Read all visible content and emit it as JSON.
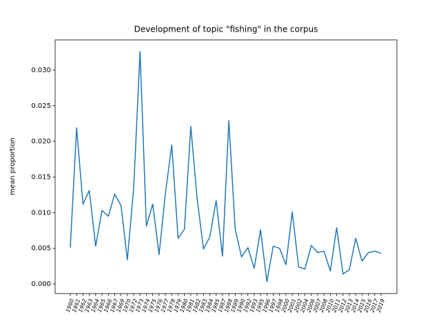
{
  "chart_data": {
    "type": "line",
    "title": "Development of topic \"fishing\" in the corpus",
    "y_label": "mean proportion",
    "categories": [
      "1960",
      "1961",
      "1962",
      "1963",
      "1964",
      "1965",
      "1966",
      "1967",
      "1969",
      "1970",
      "1972",
      "1973",
      "1974",
      "1975",
      "1976",
      "1977",
      "1978",
      "1979",
      "1980",
      "1981",
      "1982",
      "1983",
      "1984",
      "1985",
      "1987",
      "1988",
      "1989",
      "1990",
      "1992",
      "1993",
      "1995",
      "1996",
      "1997",
      "1998",
      "2000",
      "2001",
      "2002",
      "2004",
      "2006",
      "2007",
      "2008",
      "2010",
      "2011",
      "2012",
      "2013",
      "2014",
      "2015",
      "2016",
      "2017",
      "2019"
    ],
    "series": [
      {
        "name": "fishing",
        "color": "#1f77b4",
        "values": [
          0.0051,
          0.0219,
          0.0112,
          0.0131,
          0.0053,
          0.0103,
          0.0095,
          0.0126,
          0.011,
          0.0034,
          0.0135,
          0.0326,
          0.0081,
          0.0112,
          0.0041,
          0.0127,
          0.0195,
          0.0064,
          0.0077,
          0.0221,
          0.012,
          0.0049,
          0.0066,
          0.0117,
          0.0039,
          0.0229,
          0.0077,
          0.0038,
          0.0051,
          0.0022,
          0.0076,
          0.0003,
          0.0053,
          0.005,
          0.0027,
          0.0101,
          0.0024,
          0.0021,
          0.0054,
          0.0044,
          0.0046,
          0.0018,
          0.0079,
          0.0014,
          0.002,
          0.0064,
          0.0032,
          0.0044,
          0.0046,
          0.0043
        ]
      }
    ],
    "ylim": [
      -0.00135,
      0.03424
    ],
    "yticks": [
      {
        "value": 0,
        "label": "0.000"
      },
      {
        "value": 0.005,
        "label": "0.005"
      },
      {
        "value": 0.01,
        "label": "0.010"
      },
      {
        "value": 0.015,
        "label": "0.015"
      },
      {
        "value": 0.02,
        "label": "0.020"
      },
      {
        "value": 0.025,
        "label": "0.025"
      },
      {
        "value": 0.03,
        "label": "0.030"
      }
    ],
    "grid": false
  }
}
